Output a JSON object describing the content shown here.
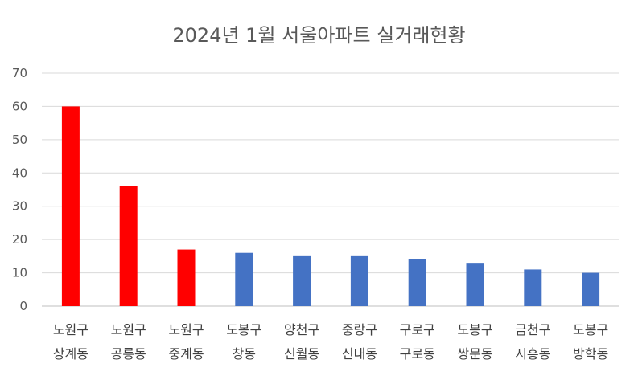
{
  "chart_data": {
    "type": "bar",
    "title": "2024년 1월 서울아파트 실거래현황",
    "xlabel": "",
    "ylabel": "",
    "ylim": [
      0,
      70
    ],
    "yticks": [
      0,
      10,
      20,
      30,
      40,
      50,
      60,
      70
    ],
    "grid": true,
    "categories": [
      [
        "노원구",
        "상계동"
      ],
      [
        "노원구",
        "공릉동"
      ],
      [
        "노원구",
        "중계동"
      ],
      [
        "도봉구",
        "창동"
      ],
      [
        "양천구",
        "신월동"
      ],
      [
        "중랑구",
        "신내동"
      ],
      [
        "구로구",
        "구로동"
      ],
      [
        "도봉구",
        "쌍문동"
      ],
      [
        "금천구",
        "시흥동"
      ],
      [
        "도봉구",
        "방학동"
      ]
    ],
    "values": [
      60,
      36,
      17,
      16,
      15,
      15,
      14,
      13,
      11,
      10
    ],
    "colors": [
      "#ff0000",
      "#ff0000",
      "#ff0000",
      "#4472c4",
      "#4472c4",
      "#4472c4",
      "#4472c4",
      "#4472c4",
      "#4472c4",
      "#4472c4"
    ]
  }
}
